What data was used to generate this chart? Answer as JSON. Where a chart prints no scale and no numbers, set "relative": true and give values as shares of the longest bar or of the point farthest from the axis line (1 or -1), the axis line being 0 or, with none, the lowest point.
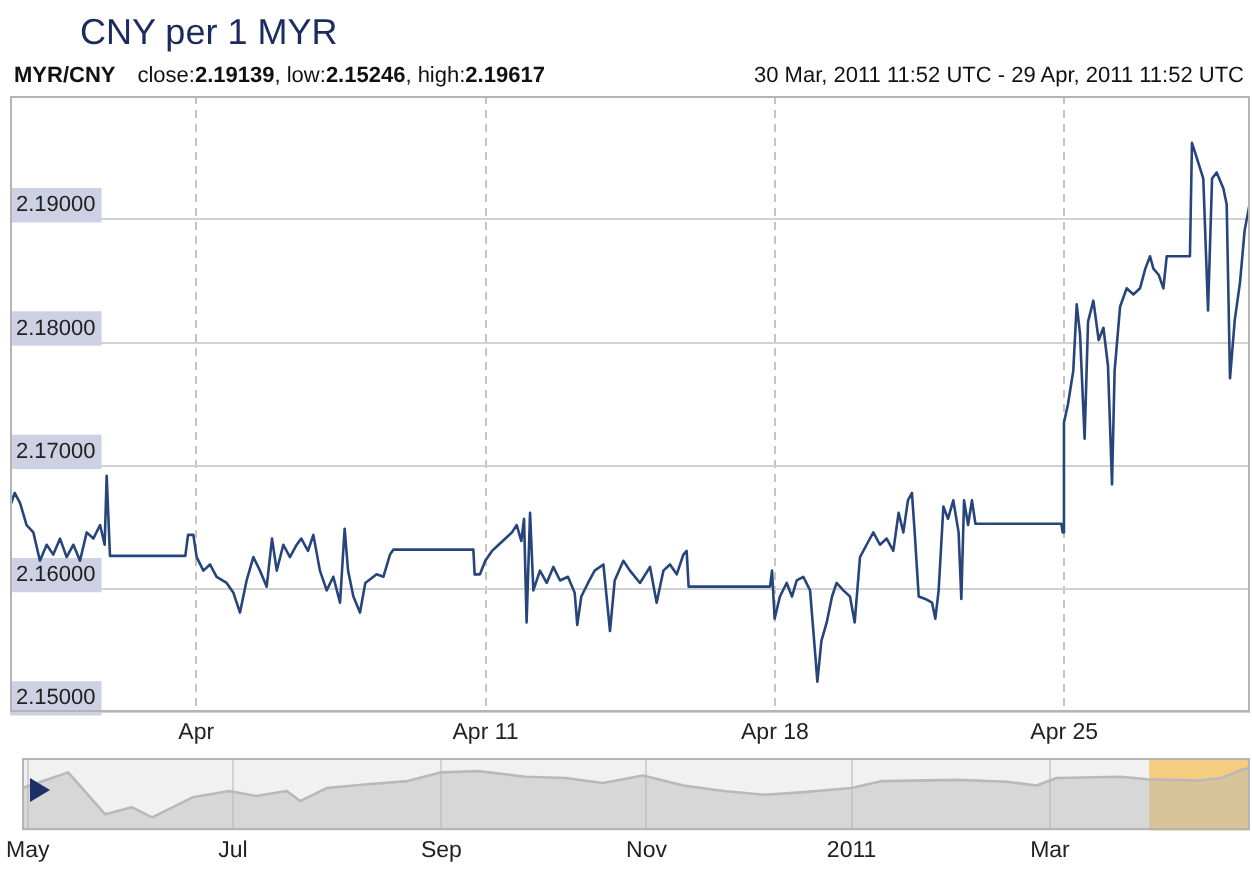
{
  "chart_data": [
    {
      "type": "line",
      "title": "CNY per 1 MYR",
      "subtitle": "MYR/CNY",
      "annotations": [
        "close:2.19139, low:2.15246, high:2.19617",
        "30 Mar, 2011 11:52 UTC - 29 Apr, 2011 11:52 UTC"
      ],
      "x": [
        "2011-03-30T11:52",
        "2011-03-30T14:35",
        "2011-03-30T17:40",
        "2011-03-30T21:30",
        "2011-03-31T01:25",
        "2011-03-31T05:15",
        "2011-03-31T09:10",
        "2011-03-31T13:00",
        "2011-03-31T16:55",
        "2011-03-31T20:45",
        "2011-04-01T00:40",
        "2011-04-01T04:30",
        "2011-04-01T08:25",
        "2011-04-01T12:15",
        "2011-04-01T16:10",
        "2011-04-01T18:50",
        "2011-04-01T20:00",
        "2011-04-01T21:55",
        "2011-04-03T17:40",
        "2011-04-03T19:15",
        "2011-04-03T22:20",
        "2011-04-04T00:15",
        "2011-04-04T04:10",
        "2011-04-04T08:00",
        "2011-04-04T11:50",
        "2011-04-04T17:40",
        "2011-04-04T21:35",
        "2011-04-05T01:25",
        "2011-04-05T05:15",
        "2011-04-05T09:10",
        "2011-04-05T13:00",
        "2011-04-05T16:55",
        "2011-04-05T20:00",
        "2011-04-05T22:45",
        "2011-04-06T02:35",
        "2011-04-06T06:25",
        "2011-04-06T10:20",
        "2011-04-06T13:00",
        "2011-04-06T16:55",
        "2011-04-06T20:00",
        "2011-04-06T23:50",
        "2011-04-07T03:45",
        "2011-04-07T07:35",
        "2011-04-07T11:30",
        "2011-04-07T14:10",
        "2011-04-07T16:10",
        "2011-04-07T19:15",
        "2011-04-07T23:05",
        "2011-04-08T02:10",
        "2011-04-08T08:45",
        "2011-04-08T12:40",
        "2011-04-08T16:30",
        "2011-04-08T18:25",
        "2011-04-10T16:55",
        "2011-04-10T17:40",
        "2011-04-10T20:45",
        "2011-04-10T23:50",
        "2011-04-11T03:45",
        "2011-04-11T07:35",
        "2011-04-11T11:30",
        "2011-04-11T15:20",
        "2011-04-11T18:05",
        "2011-04-11T20:45",
        "2011-04-11T22:20",
        "2011-04-11T23:50",
        "2011-04-12T01:50",
        "2011-04-12T03:45",
        "2011-04-12T07:35",
        "2011-04-12T11:30",
        "2011-04-12T15:20",
        "2011-04-12T19:15",
        "2011-04-12T23:50",
        "2011-04-13T03:45",
        "2011-04-13T05:15",
        "2011-04-13T07:35",
        "2011-04-13T11:30",
        "2011-04-13T15:20",
        "2011-04-13T20:25",
        "2011-04-14T00:15",
        "2011-04-14T03:00",
        "2011-04-14T08:00",
        "2011-04-14T11:50",
        "2011-04-14T17:40",
        "2011-04-14T23:30",
        "2011-04-15T03:20",
        "2011-04-15T07:15",
        "2011-04-15T11:05",
        "2011-04-15T15:00",
        "2011-04-15T18:50",
        "2011-04-15T20:45",
        "2011-04-15T21:55",
        "2011-04-17T21:10",
        "2011-04-17T22:20",
        "2011-04-17T23:50",
        "2011-04-18T02:55",
        "2011-04-18T06:50",
        "2011-04-18T09:55",
        "2011-04-18T12:40",
        "2011-04-18T16:30",
        "2011-04-18T20:25",
        "2011-04-18T23:05",
        "2011-04-19T00:40",
        "2011-04-19T03:00",
        "2011-04-19T06:05",
        "2011-04-19T09:10",
        "2011-04-19T11:50",
        "2011-04-19T15:45",
        "2011-04-19T19:35",
        "2011-04-19T22:20",
        "2011-04-20T01:25",
        "2011-04-20T05:15",
        "2011-04-20T09:10",
        "2011-04-20T13:00",
        "2011-04-20T16:55",
        "2011-04-20T20:45",
        "2011-04-20T23:50",
        "2011-04-21T02:35",
        "2011-04-21T05:15",
        "2011-04-21T07:35",
        "2011-04-21T09:10",
        "2011-04-21T11:30",
        "2011-04-21T15:20",
        "2011-04-21T19:15",
        "2011-04-21T21:10",
        "2011-04-21T23:05",
        "2011-04-22T01:50",
        "2011-04-22T04:30",
        "2011-04-22T07:35",
        "2011-04-22T10:40",
        "2011-04-22T12:15",
        "2011-04-22T13:50",
        "2011-04-22T16:10",
        "2011-04-22T18:25",
        "2011-04-22T20:25",
        "2011-04-24T22:20",
        "2011-04-24T23:05",
        "2011-04-24T23:50",
        "2011-04-25T02:10",
        "2011-04-25T05:15",
        "2011-04-25T07:15",
        "2011-04-25T09:10",
        "2011-04-25T11:50",
        "2011-04-25T13:50",
        "2011-04-25T16:55",
        "2011-04-25T20:00",
        "2011-04-25T22:45",
        "2011-04-26T01:25",
        "2011-04-26T03:45",
        "2011-04-26T05:15",
        "2011-04-26T08:25",
        "2011-04-26T12:15",
        "2011-04-26T16:10",
        "2011-04-26T20:00",
        "2011-04-26T23:05",
        "2011-04-27T01:50",
        "2011-04-27T03:45",
        "2011-04-27T06:50",
        "2011-04-27T09:35",
        "2011-04-27T11:30",
        "2011-04-28T01:00",
        "2011-04-28T02:10",
        "2011-04-28T04:55",
        "2011-04-28T08:45",
        "2011-04-28T11:30",
        "2011-04-28T13:50",
        "2011-04-28T16:30",
        "2011-04-28T20:25",
        "2011-04-28T22:20",
        "2011-04-29T00:15",
        "2011-04-29T03:00",
        "2011-04-29T06:05",
        "2011-04-29T08:45",
        "2011-04-29T11:52"
      ],
      "values": [
        2.1667,
        2.1678,
        2.167,
        2.1652,
        2.1646,
        2.1623,
        2.1636,
        2.1628,
        2.1641,
        2.1626,
        2.1636,
        2.1623,
        2.1646,
        2.1641,
        2.1652,
        2.1636,
        2.1692,
        2.1627,
        2.1627,
        2.1644,
        2.1644,
        2.1626,
        2.1615,
        2.162,
        2.161,
        2.1605,
        2.1597,
        2.1581,
        2.1607,
        2.1626,
        2.1615,
        2.1602,
        2.1641,
        2.1615,
        2.1636,
        2.1626,
        2.1636,
        2.1641,
        2.1631,
        2.1644,
        2.1615,
        2.1599,
        2.161,
        2.1589,
        2.1649,
        2.1615,
        2.1594,
        2.1581,
        2.1605,
        2.1612,
        2.161,
        2.1628,
        2.1632,
        2.1632,
        2.1612,
        2.1612,
        2.1623,
        2.1631,
        2.1636,
        2.1641,
        2.1646,
        2.1652,
        2.1639,
        2.1657,
        2.1573,
        2.1662,
        2.1599,
        2.1615,
        2.1605,
        2.1618,
        2.1607,
        2.161,
        2.1597,
        2.1571,
        2.1594,
        2.1605,
        2.1615,
        2.162,
        2.1566,
        2.1607,
        2.1623,
        2.1615,
        2.1605,
        2.1618,
        2.1589,
        2.1615,
        2.162,
        2.1612,
        2.1628,
        2.1631,
        2.1602,
        2.1602,
        2.1615,
        2.1576,
        2.1594,
        2.1605,
        2.1594,
        2.1607,
        2.161,
        2.1599,
        2.1553,
        2.1525,
        2.1558,
        2.1573,
        2.1594,
        2.1605,
        2.1599,
        2.1594,
        2.1573,
        2.1626,
        2.1636,
        2.1646,
        2.1636,
        2.1641,
        2.1631,
        2.1662,
        2.1646,
        2.1672,
        2.1678,
        2.1646,
        2.1594,
        2.1592,
        2.1589,
        2.1576,
        2.1599,
        2.1667,
        2.1657,
        2.1672,
        2.1646,
        2.1592,
        2.1672,
        2.1652,
        2.1672,
        2.1653,
        2.1653,
        2.1646,
        2.1735,
        2.175,
        2.1777,
        2.1831,
        2.1807,
        2.1722,
        2.1817,
        2.1834,
        2.1802,
        2.1812,
        2.1781,
        2.1685,
        2.1777,
        2.1829,
        2.1844,
        2.1839,
        2.1844,
        2.186,
        2.187,
        2.186,
        2.1855,
        2.1844,
        2.187,
        2.187,
        2.1962,
        2.195,
        2.1933,
        2.1826,
        2.1933,
        2.1938,
        2.1925,
        2.1912,
        2.1771,
        2.1818,
        2.1849,
        2.1891,
        2.1914
      ],
      "color": "#27457a",
      "xlim": [
        "2011-03-30T11:52",
        "2011-04-29T11:52"
      ],
      "ylim": [
        2.15,
        2.2
      ],
      "xticks": [
        {
          "value": "2011-04-04",
          "label": "Apr"
        },
        {
          "value": "2011-04-11",
          "label": "Apr 11"
        },
        {
          "value": "2011-04-18",
          "label": "Apr 18"
        },
        {
          "value": "2011-04-25",
          "label": "Apr 25"
        }
      ],
      "yticks": [
        {
          "value": 2.15,
          "label": "2.15000"
        },
        {
          "value": 2.16,
          "label": "2.16000"
        },
        {
          "value": 2.17,
          "label": "2.17000"
        },
        {
          "value": 2.18,
          "label": "2.18000"
        },
        {
          "value": 2.19,
          "label": "2.19000"
        }
      ],
      "grid": true
    },
    {
      "type": "area",
      "relative": true,
      "x": [
        "2010-04-29T11:52",
        "2010-05-13",
        "2010-05-24",
        "2010-06-01",
        "2010-06-07",
        "2010-06-19",
        "2010-06-30",
        "2010-07-08",
        "2010-07-17",
        "2010-07-21",
        "2010-07-29",
        "2010-08-10",
        "2010-08-22",
        "2010-09-01",
        "2010-09-12",
        "2010-09-26",
        "2010-10-08",
        "2010-10-19",
        "2010-10-31",
        "2010-11-12",
        "2010-11-24",
        "2010-12-06",
        "2010-12-17",
        "2011-01-01",
        "2011-01-10",
        "2011-02-02",
        "2011-02-16",
        "2011-02-25",
        "2011-03-03",
        "2011-03-22",
        "2011-03-30",
        "2011-04-14",
        "2011-04-21",
        "2011-04-27",
        "2011-04-29T11:52"
      ],
      "values": [
        0.68,
        0.93,
        0.26,
        0.37,
        0.21,
        0.53,
        0.63,
        0.55,
        0.63,
        0.47,
        0.68,
        0.74,
        0.79,
        0.93,
        0.95,
        0.86,
        0.84,
        0.76,
        0.88,
        0.72,
        0.63,
        0.57,
        0.61,
        0.68,
        0.79,
        0.81,
        0.78,
        0.72,
        0.84,
        0.86,
        0.82,
        0.8,
        0.84,
        0.97,
        1
      ],
      "color": "#b9b9b9",
      "xlim": [
        "2010-04-29T11:52",
        "2011-04-29T11:52"
      ],
      "xticks": [
        {
          "value": "2010-05-01",
          "label": "May"
        },
        {
          "value": "2010-07-01",
          "label": "Jul"
        },
        {
          "value": "2010-09-01",
          "label": "Sep"
        },
        {
          "value": "2010-11-01",
          "label": "Nov"
        },
        {
          "value": "2011-01-01",
          "label": "2011"
        },
        {
          "value": "2011-03-01",
          "label": "Mar"
        }
      ],
      "tick_labels": "x",
      "grid": "x",
      "bands": [
        {
          "axis": "x",
          "from": "2011-03-30T11:52",
          "to": "2011-04-29T11:52",
          "color": "#f5cd80"
        }
      ]
    }
  ]
}
